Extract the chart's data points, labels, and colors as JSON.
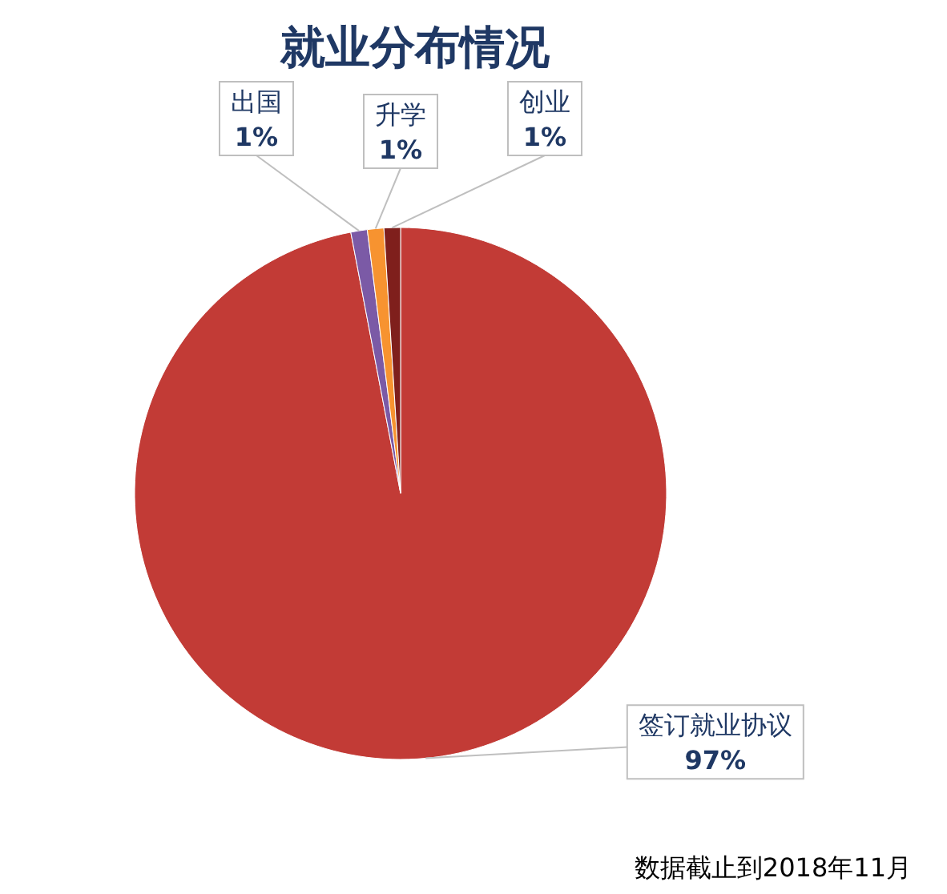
{
  "chart_data": {
    "type": "pie",
    "title": "就业分布情况",
    "categories": [
      "签订就业协议",
      "出国",
      "升学",
      "创业"
    ],
    "values": [
      97,
      1,
      1,
      1
    ],
    "value_labels": [
      "97%",
      "1%",
      "1%",
      "1%"
    ],
    "colors": [
      "#c23b36",
      "#7b5aa6",
      "#f79330",
      "#7f1f1c"
    ],
    "annotations": [
      "数据截止到2018年11月"
    ]
  }
}
